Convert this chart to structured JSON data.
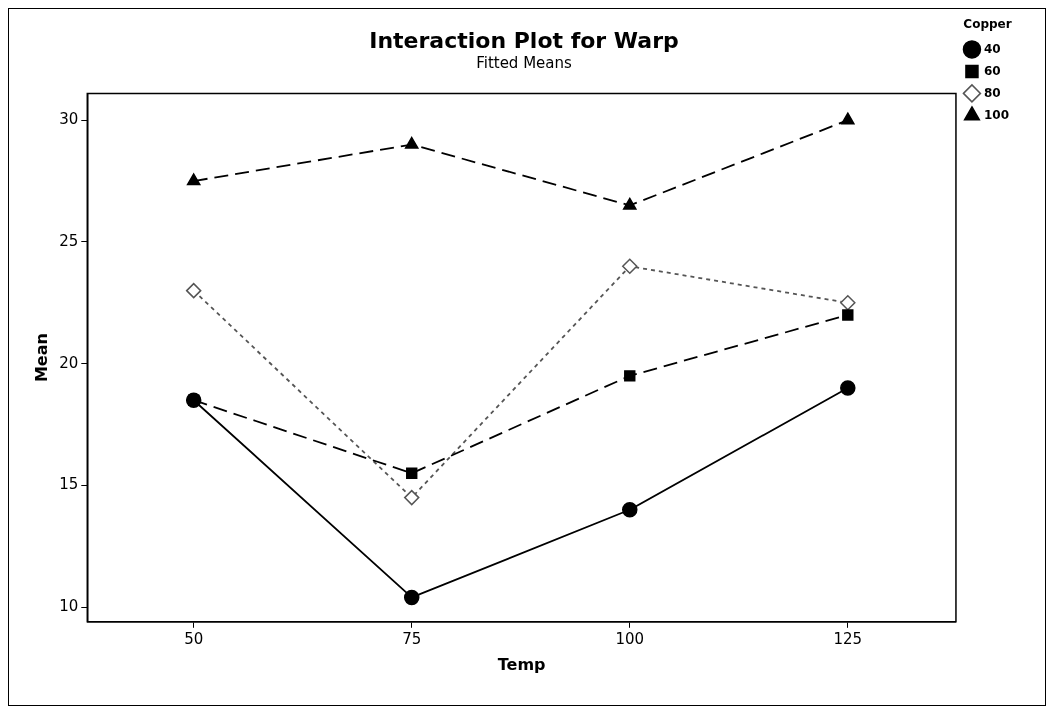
{
  "chart_data": {
    "type": "line",
    "title": "Interaction Plot for Warp",
    "subtitle": "Fitted Means",
    "xlabel": "Temp",
    "ylabel": "Mean",
    "legend_title": "Copper",
    "x": [
      50,
      75,
      100,
      125
    ],
    "series": [
      {
        "name": "40",
        "color": "#000000",
        "values": [
          18.5,
          10.4,
          14.0,
          19.0
        ],
        "marker": "circle",
        "line_style": "solid"
      },
      {
        "name": "60",
        "color": "#000000",
        "values": [
          18.5,
          15.5,
          19.5,
          22.0
        ],
        "marker": "square",
        "line_style": "dashed"
      },
      {
        "name": "80",
        "color": "#555555",
        "values": [
          23.0,
          14.5,
          24.0,
          22.5
        ],
        "marker": "diamond",
        "line_style": "dotted"
      },
      {
        "name": "100",
        "color": "#000000",
        "values": [
          27.5,
          29.0,
          26.5,
          30.0
        ],
        "marker": "triangle",
        "line_style": "dashed"
      }
    ],
    "xlim": [
      37.8,
      137.4
    ],
    "xticks": [
      50,
      75,
      100,
      125
    ],
    "ylim": [
      9.4,
      31.1
    ],
    "yticks": [
      10,
      15,
      20,
      25,
      30
    ],
    "grid": false,
    "legend": "right"
  }
}
